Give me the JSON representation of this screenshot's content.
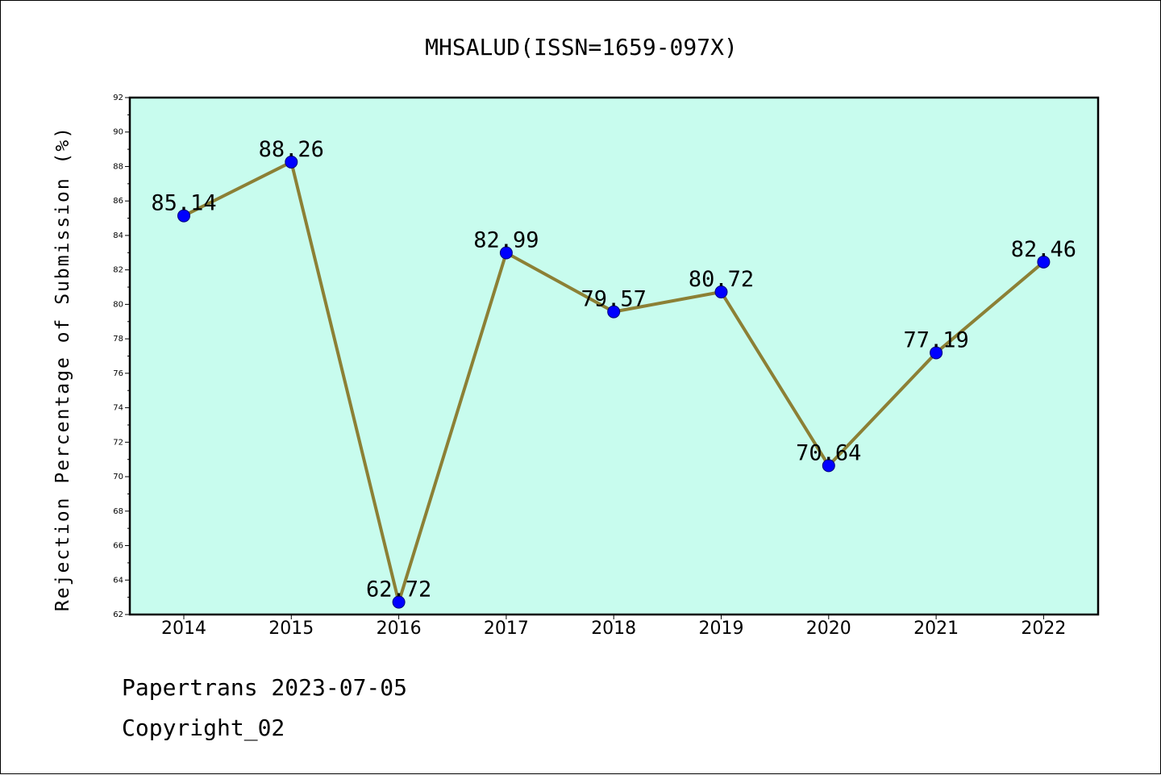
{
  "chart_data": {
    "type": "line",
    "title": "MHSALUD(ISSN=1659-097X)",
    "xlabel": "",
    "ylabel": "Rejection Percentage of Submission (%)",
    "categories": [
      "2014",
      "2015",
      "2016",
      "2017",
      "2018",
      "2019",
      "2020",
      "2021",
      "2022"
    ],
    "series": [
      {
        "values": [
          85.14,
          88.26,
          62.72,
          82.99,
          79.57,
          80.72,
          70.64,
          77.19,
          82.46
        ],
        "data_labels": [
          "85.14",
          "88.26",
          "62.72",
          "82.99",
          "79.57",
          "80.72",
          "70.64",
          "77.19",
          "82.46"
        ],
        "line_color": "#8c8035",
        "marker_color": "#0000ff"
      }
    ],
    "ylim": [
      62,
      92
    ],
    "yticks": [
      "62",
      "64",
      "66",
      "68",
      "70",
      "72",
      "74",
      "76",
      "78",
      "80",
      "82",
      "84",
      "86",
      "88",
      "90",
      "92"
    ],
    "grid": false,
    "plot_background": "#c8fcee"
  },
  "footer": {
    "line1": "Papertrans 2023-07-05",
    "line2": "Copyright_02"
  }
}
